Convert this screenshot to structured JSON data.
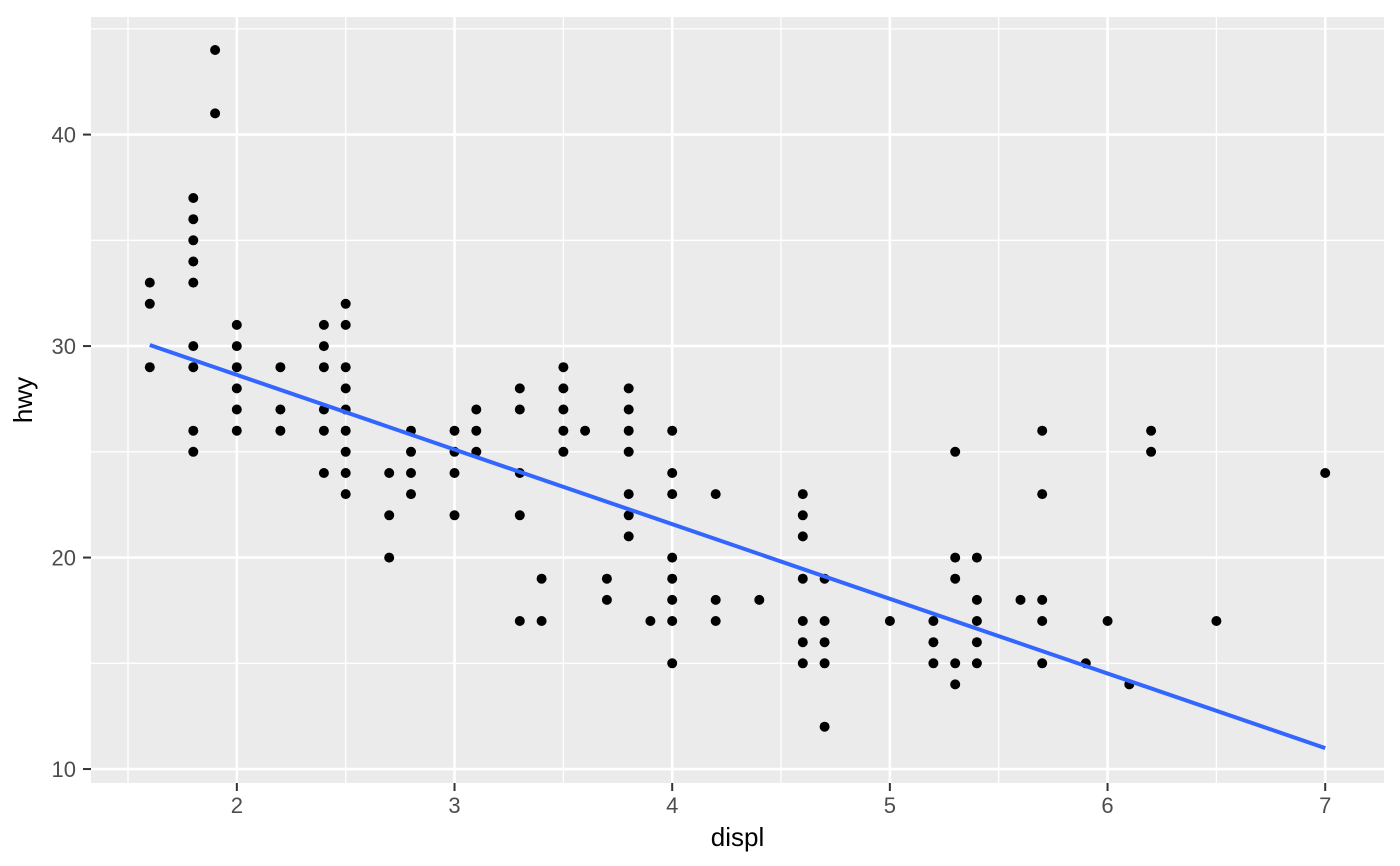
{
  "chart_data": {
    "type": "scatter",
    "title": "",
    "xlabel": "displ",
    "ylabel": "hwy",
    "legend": "none",
    "grid": "white major and minor gridlines on grey panel",
    "panel_bg": "#EBEBEB",
    "grid_color": "#FFFFFF",
    "point_color": "#000000",
    "point_radius": 5,
    "tick_label_color": "#4D4D4D",
    "axis_title_color": "#000000",
    "tick_mark_color": "#333333",
    "xlim": [
      1.33,
      7.27
    ],
    "ylim": [
      9.34,
      45.56
    ],
    "x_ticks": [
      2,
      3,
      4,
      5,
      6,
      7
    ],
    "y_ticks": [
      10,
      20,
      30,
      40
    ],
    "x_minor_ticks": [
      1.5,
      2.5,
      3.5,
      4.5,
      5.5,
      6.5
    ],
    "y_minor_ticks": [
      15,
      25,
      35,
      45
    ],
    "trend_line": {
      "model": "linear fit hwy ~ displ",
      "color": "#3366FF",
      "width": 4,
      "x1": 1.6,
      "y1": 30.05,
      "x2": 7.0,
      "y2": 10.99
    },
    "points": [
      [
        1.6,
        29
      ],
      [
        1.6,
        32
      ],
      [
        1.6,
        33
      ],
      [
        1.8,
        25
      ],
      [
        1.8,
        26
      ],
      [
        1.8,
        29
      ],
      [
        1.8,
        30
      ],
      [
        1.8,
        33
      ],
      [
        1.8,
        34
      ],
      [
        1.8,
        35
      ],
      [
        1.8,
        36
      ],
      [
        1.8,
        37
      ],
      [
        1.9,
        41
      ],
      [
        1.9,
        44
      ],
      [
        2.0,
        26
      ],
      [
        2.0,
        27
      ],
      [
        2.0,
        28
      ],
      [
        2.0,
        29
      ],
      [
        2.0,
        30
      ],
      [
        2.0,
        31
      ],
      [
        2.2,
        26
      ],
      [
        2.2,
        27
      ],
      [
        2.2,
        29
      ],
      [
        2.4,
        24
      ],
      [
        2.4,
        26
      ],
      [
        2.4,
        27
      ],
      [
        2.4,
        29
      ],
      [
        2.4,
        30
      ],
      [
        2.4,
        31
      ],
      [
        2.5,
        23
      ],
      [
        2.5,
        24
      ],
      [
        2.5,
        25
      ],
      [
        2.5,
        26
      ],
      [
        2.5,
        27
      ],
      [
        2.5,
        28
      ],
      [
        2.5,
        29
      ],
      [
        2.5,
        31
      ],
      [
        2.5,
        32
      ],
      [
        2.7,
        20
      ],
      [
        2.7,
        22
      ],
      [
        2.7,
        24
      ],
      [
        2.8,
        23
      ],
      [
        2.8,
        24
      ],
      [
        2.8,
        25
      ],
      [
        2.8,
        26
      ],
      [
        3.0,
        22
      ],
      [
        3.0,
        24
      ],
      [
        3.0,
        25
      ],
      [
        3.0,
        26
      ],
      [
        3.1,
        25
      ],
      [
        3.1,
        26
      ],
      [
        3.1,
        27
      ],
      [
        3.3,
        17
      ],
      [
        3.3,
        22
      ],
      [
        3.3,
        24
      ],
      [
        3.3,
        27
      ],
      [
        3.3,
        28
      ],
      [
        3.4,
        17
      ],
      [
        3.4,
        19
      ],
      [
        3.5,
        25
      ],
      [
        3.5,
        26
      ],
      [
        3.5,
        27
      ],
      [
        3.5,
        28
      ],
      [
        3.5,
        29
      ],
      [
        3.6,
        26
      ],
      [
        3.7,
        18
      ],
      [
        3.7,
        19
      ],
      [
        3.8,
        21
      ],
      [
        3.8,
        22
      ],
      [
        3.8,
        23
      ],
      [
        3.8,
        25
      ],
      [
        3.8,
        26
      ],
      [
        3.8,
        27
      ],
      [
        3.8,
        28
      ],
      [
        3.9,
        17
      ],
      [
        4.0,
        15
      ],
      [
        4.0,
        17
      ],
      [
        4.0,
        18
      ],
      [
        4.0,
        19
      ],
      [
        4.0,
        20
      ],
      [
        4.0,
        23
      ],
      [
        4.0,
        24
      ],
      [
        4.0,
        26
      ],
      [
        4.2,
        17
      ],
      [
        4.2,
        18
      ],
      [
        4.2,
        23
      ],
      [
        4.4,
        18
      ],
      [
        4.6,
        15
      ],
      [
        4.6,
        16
      ],
      [
        4.6,
        17
      ],
      [
        4.6,
        19
      ],
      [
        4.6,
        21
      ],
      [
        4.6,
        22
      ],
      [
        4.6,
        23
      ],
      [
        4.7,
        12
      ],
      [
        4.7,
        15
      ],
      [
        4.7,
        16
      ],
      [
        4.7,
        17
      ],
      [
        4.7,
        19
      ],
      [
        5.0,
        17
      ],
      [
        5.2,
        15
      ],
      [
        5.2,
        16
      ],
      [
        5.2,
        17
      ],
      [
        5.3,
        14
      ],
      [
        5.3,
        15
      ],
      [
        5.3,
        19
      ],
      [
        5.3,
        20
      ],
      [
        5.3,
        25
      ],
      [
        5.4,
        15
      ],
      [
        5.4,
        16
      ],
      [
        5.4,
        17
      ],
      [
        5.4,
        18
      ],
      [
        5.4,
        20
      ],
      [
        5.6,
        18
      ],
      [
        5.7,
        15
      ],
      [
        5.7,
        17
      ],
      [
        5.7,
        18
      ],
      [
        5.7,
        23
      ],
      [
        5.7,
        26
      ],
      [
        5.9,
        15
      ],
      [
        6.0,
        17
      ],
      [
        6.1,
        14
      ],
      [
        6.2,
        25
      ],
      [
        6.2,
        26
      ],
      [
        6.5,
        17
      ],
      [
        7.0,
        24
      ]
    ]
  }
}
